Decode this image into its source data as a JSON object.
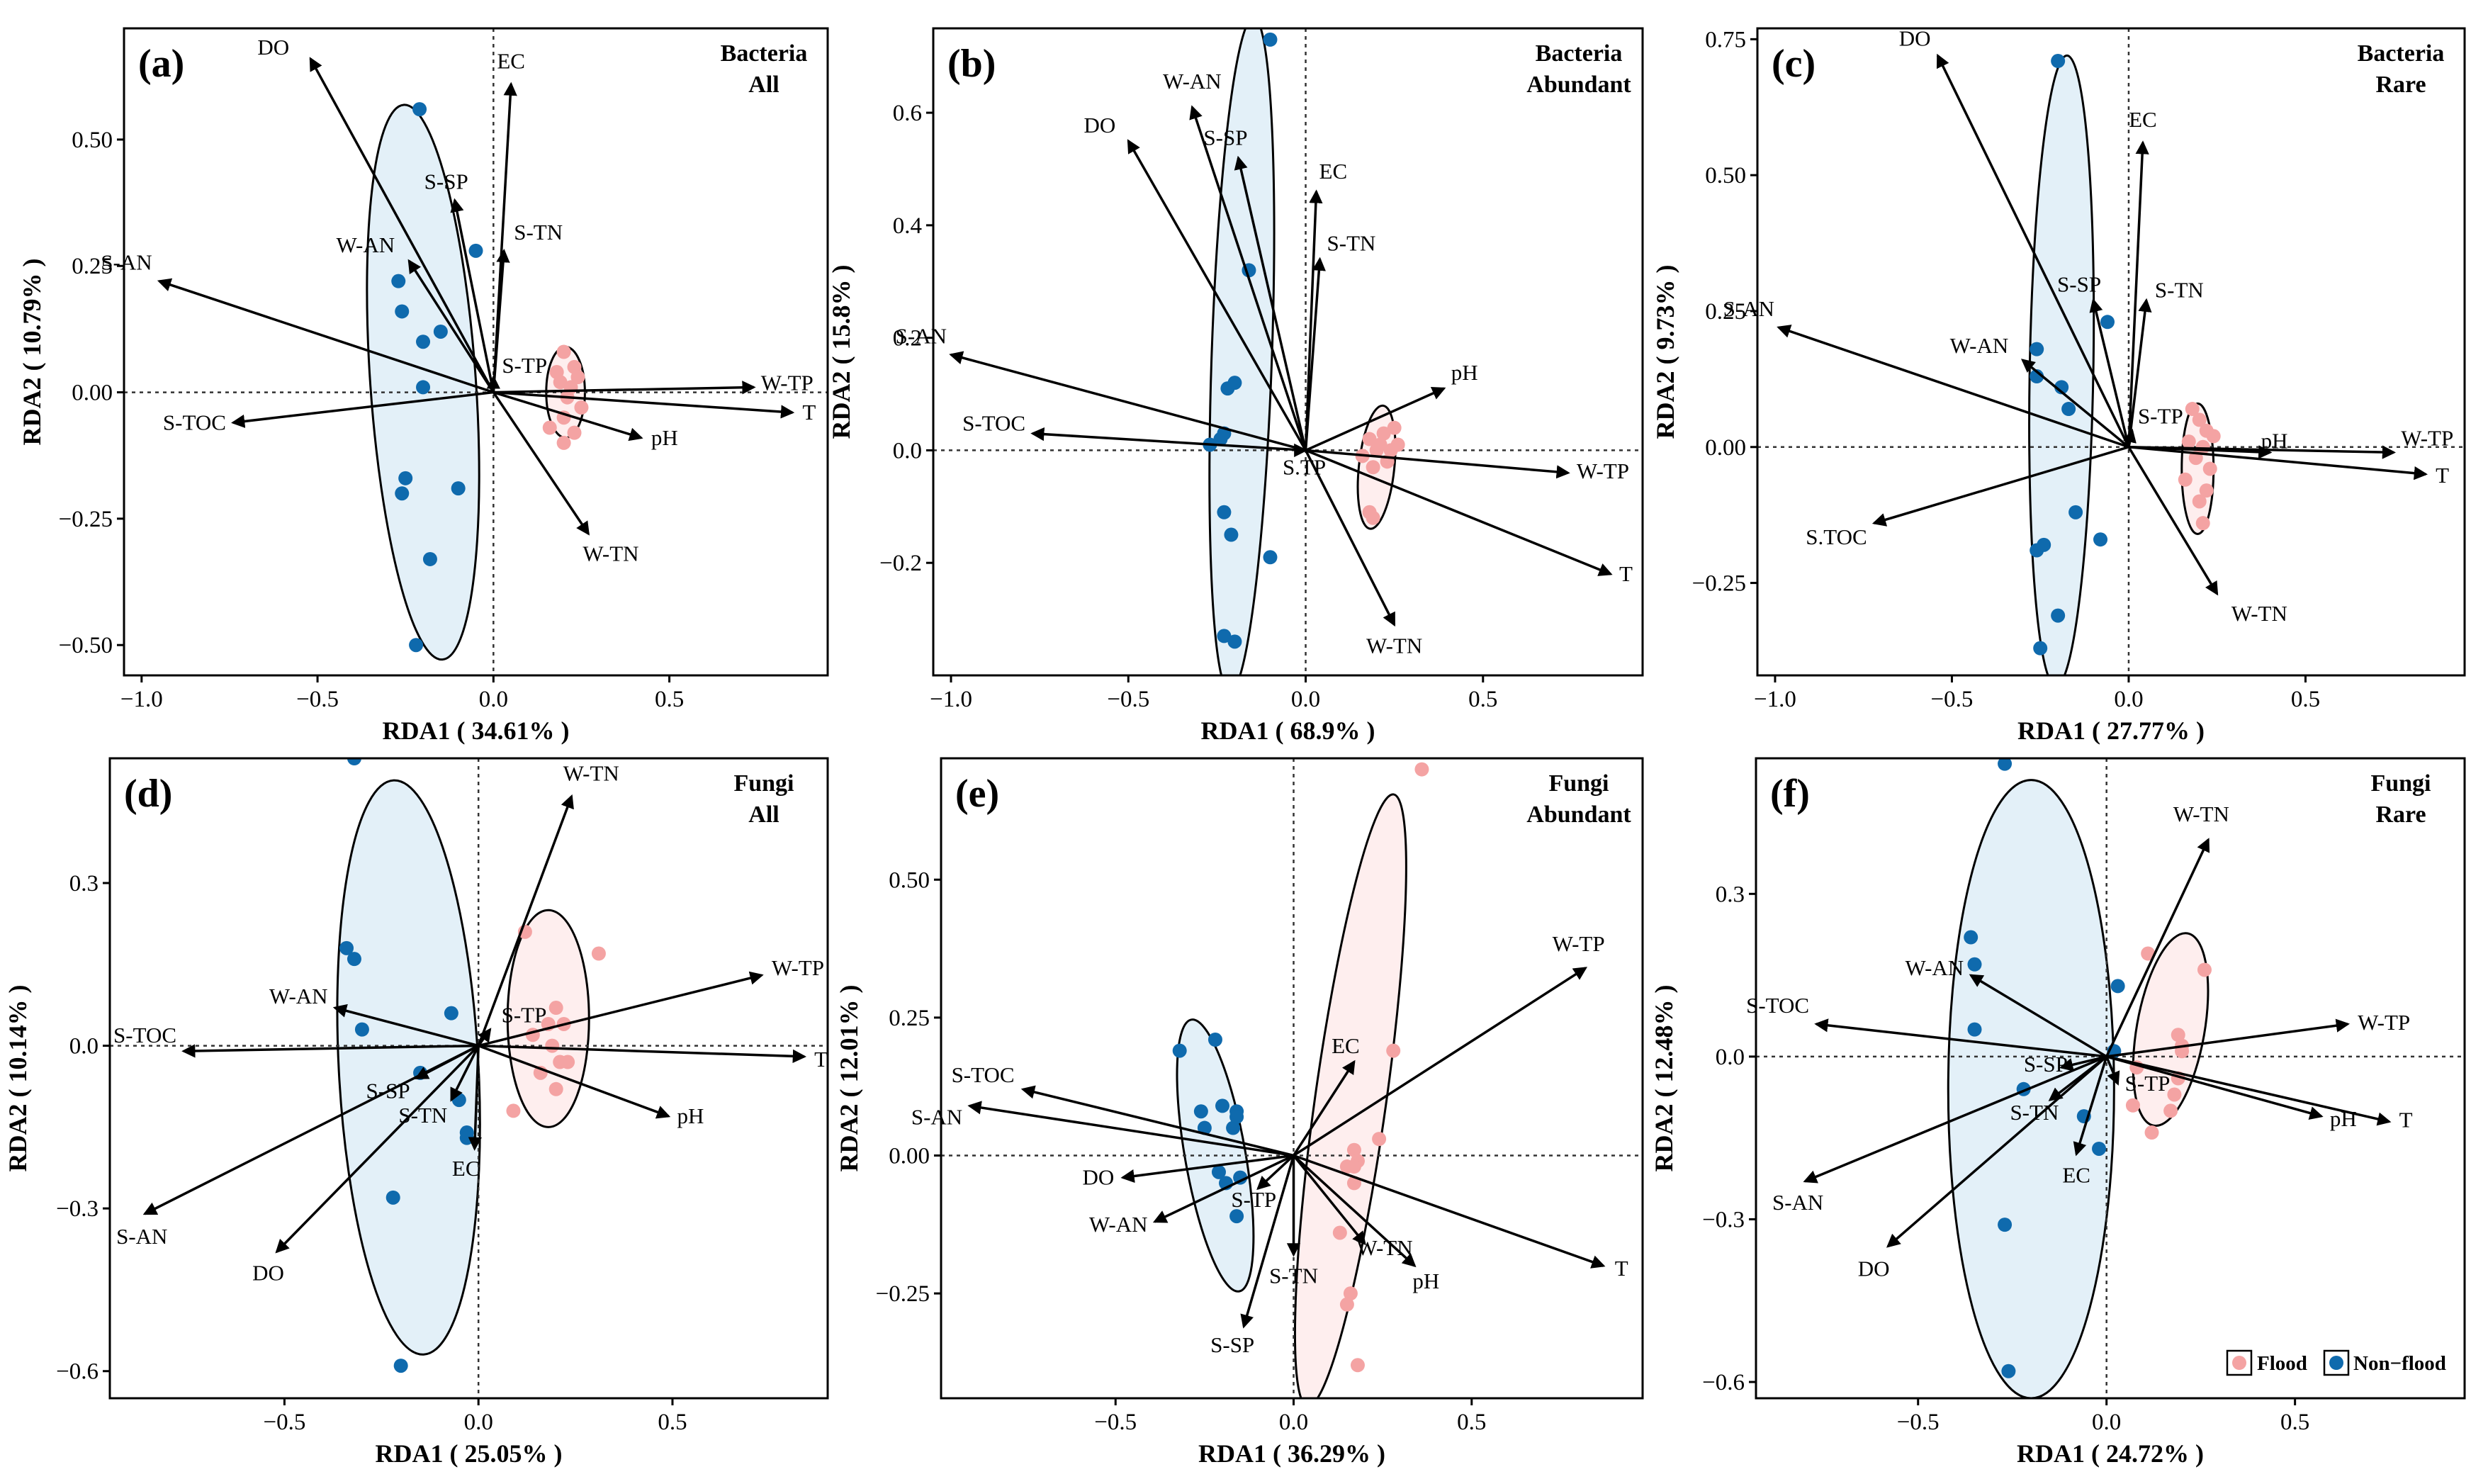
{
  "colors": {
    "flood": "#f4a3a3",
    "nonflood": "#0f6aad",
    "floodFill": "#fde8e8",
    "nonfloodFill": "#dcecf6"
  },
  "legend": {
    "flood": "Flood",
    "nonflood": "Non−flood"
  },
  "chart_data": [
    {
      "type": "scatter",
      "label": "(a)",
      "title": [
        "Bacteria",
        "All"
      ],
      "xlabel": "RDA1 ( 34.61% )",
      "ylabel": "RDA2 ( 10.79% )",
      "xlim": [
        -1.05,
        0.95
      ],
      "ylim": [
        -0.56,
        0.72
      ],
      "xticks": [
        -1.0,
        -0.5,
        0.0,
        0.5
      ],
      "xticklabels": [
        "−1.0",
        "−0.5",
        "0.0",
        "0.5"
      ],
      "yticks": [
        -0.5,
        -0.25,
        0.0,
        0.25,
        0.5
      ],
      "yticklabels": [
        "−0.50",
        "−0.25",
        "0.00",
        "0.25",
        "0.50"
      ],
      "arrows": [
        {
          "label": "DO",
          "x": -0.52,
          "y": 0.66
        },
        {
          "label": "EC",
          "x": 0.05,
          "y": 0.61
        },
        {
          "label": "S-SP",
          "x": -0.11,
          "y": 0.38
        },
        {
          "label": "S-TN",
          "x": 0.03,
          "y": 0.28
        },
        {
          "label": "W-AN",
          "x": -0.24,
          "y": 0.26
        },
        {
          "label": "S-AN",
          "x": -0.95,
          "y": 0.22
        },
        {
          "label": "S-TP",
          "x": 0.0,
          "y": 0.03
        },
        {
          "label": "W-TP",
          "x": 0.74,
          "y": 0.01
        },
        {
          "label": "T",
          "x": 0.85,
          "y": -0.04
        },
        {
          "label": "S-TOC",
          "x": -0.74,
          "y": -0.06
        },
        {
          "label": "pH",
          "x": 0.42,
          "y": -0.09
        },
        {
          "label": "W-TN",
          "x": 0.27,
          "y": -0.28
        }
      ],
      "series": [
        {
          "name": "Non−flood",
          "x": [
            -0.21,
            -0.05,
            -0.27,
            -0.26,
            -0.2,
            -0.15,
            -0.2,
            -0.25,
            -0.26,
            -0.1,
            -0.18,
            -0.22
          ],
          "y": [
            0.56,
            0.28,
            0.22,
            0.16,
            0.1,
            0.12,
            0.01,
            -0.17,
            -0.2,
            -0.19,
            -0.33,
            -0.5
          ]
        },
        {
          "name": "Flood",
          "x": [
            0.2,
            0.18,
            0.23,
            0.24,
            0.19,
            0.21,
            0.25,
            0.2,
            0.16,
            0.23,
            0.2,
            0.22
          ],
          "y": [
            0.08,
            0.04,
            0.05,
            0.03,
            0.02,
            -0.01,
            -0.03,
            -0.05,
            -0.07,
            -0.08,
            -0.1,
            0.01
          ]
        }
      ],
      "ellipses": [
        {
          "group": "Non−flood",
          "cx": -0.2,
          "cy": 0.02,
          "rx": 0.15,
          "ry": 0.55,
          "rot": -4
        },
        {
          "group": "Flood",
          "cx": 0.205,
          "cy": 0.0,
          "rx": 0.055,
          "ry": 0.09,
          "rot": 0
        }
      ]
    },
    {
      "type": "scatter",
      "label": "(b)",
      "title": [
        "Bacteria",
        "Abundant"
      ],
      "xlabel": "RDA1 ( 68.9% )",
      "ylabel": "RDA2 ( 15.8% )",
      "xlim": [
        -1.05,
        0.95
      ],
      "ylim": [
        -0.4,
        0.75
      ],
      "xticks": [
        -1.0,
        -0.5,
        0.0,
        0.5
      ],
      "xticklabels": [
        "−1.0",
        "−0.5",
        "0.0",
        "0.5"
      ],
      "yticks": [
        -0.2,
        0.0,
        0.2,
        0.4,
        0.6
      ],
      "yticklabels": [
        "−0.2",
        "0.0",
        "0.2",
        "0.4",
        "0.6"
      ],
      "arrows": [
        {
          "label": "W-AN",
          "x": -0.32,
          "y": 0.61
        },
        {
          "label": "DO",
          "x": -0.5,
          "y": 0.55
        },
        {
          "label": "S-SP",
          "x": -0.19,
          "y": 0.52
        },
        {
          "label": "EC",
          "x": 0.03,
          "y": 0.46
        },
        {
          "label": "S-TN",
          "x": 0.04,
          "y": 0.34
        },
        {
          "label": "S-AN",
          "x": -1.0,
          "y": 0.17
        },
        {
          "label": "pH",
          "x": 0.39,
          "y": 0.11
        },
        {
          "label": "S-TOC",
          "x": -0.77,
          "y": 0.03
        },
        {
          "label": "S.TP",
          "x": 0.0,
          "y": 0.0
        },
        {
          "label": "W-TP",
          "x": 0.74,
          "y": -0.04
        },
        {
          "label": "T",
          "x": 0.86,
          "y": -0.22
        },
        {
          "label": "W-TN",
          "x": 0.25,
          "y": -0.31
        }
      ],
      "series": [
        {
          "name": "Non−flood",
          "x": [
            -0.1,
            -0.16,
            -0.22,
            -0.2,
            -0.23,
            -0.24,
            -0.27,
            -0.23,
            -0.21,
            -0.1,
            -0.23,
            -0.2
          ],
          "y": [
            0.73,
            0.32,
            0.11,
            0.12,
            0.03,
            0.02,
            0.01,
            -0.11,
            -0.15,
            -0.19,
            -0.33,
            -0.34
          ]
        },
        {
          "name": "Flood",
          "x": [
            0.25,
            0.22,
            0.18,
            0.26,
            0.2,
            0.16,
            0.23,
            0.19,
            0.21,
            0.18,
            0.24,
            0.19
          ],
          "y": [
            0.04,
            0.03,
            0.02,
            0.01,
            0.0,
            -0.01,
            -0.02,
            -0.03,
            0.01,
            -0.11,
            0.0,
            -0.12
          ]
        }
      ],
      "ellipses": [
        {
          "group": "Non−flood",
          "cx": -0.18,
          "cy": 0.17,
          "rx": 0.085,
          "ry": 0.6,
          "rot": 2
        },
        {
          "group": "Flood",
          "cx": 0.2,
          "cy": -0.03,
          "rx": 0.05,
          "ry": 0.11,
          "rot": 6
        }
      ]
    },
    {
      "type": "scatter",
      "label": "(c)",
      "title": [
        "Bacteria",
        "Rare"
      ],
      "xlabel": "RDA1 ( 27.77% )",
      "ylabel": "RDA2 ( 9.73% )",
      "xlim": [
        -1.05,
        0.95
      ],
      "ylim": [
        -0.42,
        0.77
      ],
      "xticks": [
        -1.0,
        -0.5,
        0.0,
        0.5
      ],
      "xticklabels": [
        "−1.0",
        "−0.5",
        "0.0",
        "0.5"
      ],
      "yticks": [
        -0.25,
        0.0,
        0.25,
        0.5,
        0.75
      ],
      "yticklabels": [
        "−0.25",
        "0.00",
        "0.25",
        "0.50",
        "0.75"
      ],
      "arrows": [
        {
          "label": "DO",
          "x": -0.54,
          "y": 0.72
        },
        {
          "label": "EC",
          "x": 0.04,
          "y": 0.56
        },
        {
          "label": "S-SP",
          "x": -0.1,
          "y": 0.27
        },
        {
          "label": "S-TN",
          "x": 0.05,
          "y": 0.27
        },
        {
          "label": "S-AN",
          "x": -0.99,
          "y": 0.22
        },
        {
          "label": "W-AN",
          "x": -0.3,
          "y": 0.16
        },
        {
          "label": "S-TP",
          "x": 0.01,
          "y": 0.03
        },
        {
          "label": "pH",
          "x": 0.4,
          "y": -0.01
        },
        {
          "label": "W-TP",
          "x": 0.75,
          "y": -0.01
        },
        {
          "label": "T",
          "x": 0.84,
          "y": -0.05
        },
        {
          "label": "S.TOC",
          "x": -0.72,
          "y": -0.14
        },
        {
          "label": "W-TN",
          "x": 0.25,
          "y": -0.27
        }
      ],
      "series": [
        {
          "name": "Non−flood",
          "x": [
            -0.2,
            -0.06,
            -0.26,
            -0.26,
            -0.19,
            -0.17,
            -0.15,
            -0.26,
            -0.24,
            -0.08,
            -0.2,
            -0.25
          ],
          "y": [
            0.71,
            0.23,
            0.18,
            0.13,
            0.11,
            0.07,
            -0.12,
            -0.19,
            -0.18,
            -0.17,
            -0.31,
            -0.37
          ]
        },
        {
          "name": "Flood",
          "x": [
            0.18,
            0.2,
            0.22,
            0.24,
            0.17,
            0.21,
            0.19,
            0.23,
            0.16,
            0.22,
            0.2,
            0.21
          ],
          "y": [
            0.07,
            0.05,
            0.03,
            0.02,
            0.01,
            0.0,
            -0.02,
            -0.04,
            -0.06,
            -0.08,
            -0.1,
            -0.14
          ]
        }
      ],
      "ellipses": [
        {
          "group": "Non−flood",
          "cx": -0.19,
          "cy": 0.14,
          "rx": 0.09,
          "ry": 0.58,
          "rot": 1
        },
        {
          "group": "Flood",
          "cx": 0.195,
          "cy": -0.04,
          "rx": 0.045,
          "ry": 0.12,
          "rot": 0
        }
      ]
    },
    {
      "type": "scatter",
      "label": "(d)",
      "title": [
        "Fungi",
        "All"
      ],
      "xlabel": "RDA1 ( 25.05% )",
      "ylabel": "RDA2 ( 10.14% )",
      "xlim": [
        -0.95,
        0.9
      ],
      "ylim": [
        -0.65,
        0.53
      ],
      "xticks": [
        -0.5,
        0.0,
        0.5
      ],
      "xticklabels": [
        "−0.5",
        "0.0",
        "0.5"
      ],
      "yticks": [
        -0.6,
        -0.3,
        0.0,
        0.3
      ],
      "yticklabels": [
        "−0.6",
        "−0.3",
        "0.0",
        "0.3"
      ],
      "arrows": [
        {
          "label": "W-TN",
          "x": 0.24,
          "y": 0.46
        },
        {
          "label": "W-TP",
          "x": 0.73,
          "y": 0.13
        },
        {
          "label": "W-AN",
          "x": -0.37,
          "y": 0.07
        },
        {
          "label": "S-TP",
          "x": 0.03,
          "y": 0.03
        },
        {
          "label": "S-TOC",
          "x": -0.76,
          "y": -0.01
        },
        {
          "label": "T",
          "x": 0.84,
          "y": -0.02
        },
        {
          "label": "S-SP",
          "x": -0.16,
          "y": -0.06
        },
        {
          "label": "S-TN",
          "x": -0.07,
          "y": -0.1
        },
        {
          "label": "pH",
          "x": 0.49,
          "y": -0.13
        },
        {
          "label": "EC",
          "x": -0.01,
          "y": -0.19
        },
        {
          "label": "S-AN",
          "x": -0.86,
          "y": -0.31
        },
        {
          "label": "DO",
          "x": -0.52,
          "y": -0.38
        }
      ],
      "series": [
        {
          "name": "Non−flood",
          "x": [
            -0.32,
            -0.34,
            -0.32,
            -0.3,
            -0.07,
            -0.15,
            -0.05,
            -0.03,
            -0.03,
            -0.22,
            -0.2
          ],
          "y": [
            0.53,
            0.18,
            0.16,
            0.03,
            0.06,
            -0.05,
            -0.1,
            -0.16,
            -0.17,
            -0.28,
            -0.59
          ]
        },
        {
          "name": "Flood",
          "x": [
            0.12,
            0.31,
            0.2,
            0.18,
            0.22,
            0.14,
            0.19,
            0.21,
            0.16,
            0.23,
            0.2,
            0.09
          ],
          "y": [
            0.21,
            0.17,
            0.07,
            0.04,
            0.04,
            0.02,
            0.0,
            -0.03,
            -0.05,
            -0.03,
            -0.08,
            -0.12
          ]
        }
      ],
      "ellipses": [
        {
          "group": "Non−flood",
          "cx": -0.18,
          "cy": -0.04,
          "rx": 0.18,
          "ry": 0.53,
          "rot": -3
        },
        {
          "group": "Flood",
          "cx": 0.18,
          "cy": 0.05,
          "rx": 0.105,
          "ry": 0.2,
          "rot": 0
        }
      ]
    },
    {
      "type": "scatter",
      "label": "(e)",
      "title": [
        "Fungi",
        "Abundant"
      ],
      "xlabel": "RDA1 ( 36.29% )",
      "ylabel": "RDA2 ( 12.01% )",
      "xlim": [
        -0.99,
        0.98
      ],
      "ylim": [
        -0.44,
        0.72
      ],
      "xticks": [
        -0.5,
        0.0,
        0.5
      ],
      "xticklabels": [
        "−0.5",
        "0.0",
        "0.5"
      ],
      "yticks": [
        -0.25,
        0.0,
        0.25,
        0.5
      ],
      "yticklabels": [
        "−0.25",
        "0.00",
        "0.25",
        "0.50"
      ],
      "arrows": [
        {
          "label": "W-TP",
          "x": 0.82,
          "y": 0.34
        },
        {
          "label": "EC",
          "x": 0.17,
          "y": 0.17
        },
        {
          "label": "S-TOC",
          "x": -0.76,
          "y": 0.12
        },
        {
          "label": "S-AN",
          "x": -0.91,
          "y": 0.09
        },
        {
          "label": "DO",
          "x": -0.48,
          "y": -0.04
        },
        {
          "label": "S-TP",
          "x": -0.1,
          "y": -0.06
        },
        {
          "label": "W-AN",
          "x": -0.39,
          "y": -0.12
        },
        {
          "label": "W-TN",
          "x": 0.2,
          "y": -0.16
        },
        {
          "label": "S-TN",
          "x": 0.0,
          "y": -0.18
        },
        {
          "label": "pH",
          "x": 0.34,
          "y": -0.2
        },
        {
          "label": "T",
          "x": 0.87,
          "y": -0.2
        },
        {
          "label": "S-SP",
          "x": -0.14,
          "y": -0.31
        }
      ],
      "series": [
        {
          "name": "Non−flood",
          "x": [
            -0.32,
            -0.22,
            -0.26,
            -0.2,
            -0.16,
            -0.17,
            -0.16,
            -0.25,
            -0.21,
            -0.15,
            -0.19,
            -0.16
          ],
          "y": [
            0.19,
            0.21,
            0.08,
            0.09,
            0.08,
            0.05,
            0.07,
            0.05,
            -0.03,
            -0.04,
            -0.05,
            -0.11
          ]
        },
        {
          "name": "Flood",
          "x": [
            0.36,
            0.28,
            0.24,
            0.17,
            0.18,
            0.15,
            0.17,
            0.13,
            0.16,
            0.15,
            0.18,
            0.17
          ],
          "y": [
            0.7,
            0.19,
            0.03,
            0.01,
            -0.01,
            -0.02,
            -0.05,
            -0.14,
            -0.25,
            -0.27,
            -0.38,
            -0.02
          ]
        }
      ],
      "ellipses": [
        {
          "group": "Non−flood",
          "cx": -0.22,
          "cy": 0.0,
          "rx": 0.085,
          "ry": 0.25,
          "rot": -10
        },
        {
          "group": "Flood",
          "cx": 0.16,
          "cy": 0.1,
          "rx": 0.1,
          "ry": 0.56,
          "rot": 8
        }
      ]
    },
    {
      "type": "scatter",
      "label": "(f)",
      "title": [
        "Fungi",
        "Rare"
      ],
      "xlabel": "RDA1 ( 24.72% )",
      "ylabel": "RDA2 ( 12.48% )",
      "xlim": [
        -0.93,
        0.95
      ],
      "ylim": [
        -0.63,
        0.55
      ],
      "xticks": [
        -0.5,
        0.0,
        0.5
      ],
      "xticklabels": [
        "−0.5",
        "0.0",
        "0.5"
      ],
      "yticks": [
        -0.6,
        -0.3,
        0.0,
        0.3
      ],
      "yticklabels": [
        "−0.6",
        "−0.3",
        "0.0",
        "0.3"
      ],
      "arrows": [
        {
          "label": "W-TN",
          "x": 0.27,
          "y": 0.4
        },
        {
          "label": "W-AN",
          "x": -0.36,
          "y": 0.15
        },
        {
          "label": "S-TOC",
          "x": -0.77,
          "y": 0.06
        },
        {
          "label": "W-TP",
          "x": 0.64,
          "y": 0.06
        },
        {
          "label": "S-SP",
          "x": -0.12,
          "y": -0.02
        },
        {
          "label": "S-TP",
          "x": 0.03,
          "y": -0.05
        },
        {
          "label": "S-TN",
          "x": -0.15,
          "y": -0.08
        },
        {
          "label": "pH",
          "x": 0.57,
          "y": -0.11
        },
        {
          "label": "T",
          "x": 0.75,
          "y": -0.12
        },
        {
          "label": "EC",
          "x": -0.08,
          "y": -0.18
        },
        {
          "label": "S-AN",
          "x": -0.8,
          "y": -0.23
        },
        {
          "label": "DO",
          "x": -0.58,
          "y": -0.35
        }
      ],
      "series": [
        {
          "name": "Non−flood",
          "x": [
            -0.27,
            -0.36,
            -0.35,
            -0.35,
            -0.22,
            -0.06,
            -0.02,
            0.03,
            0.02,
            -0.27,
            -0.26
          ],
          "y": [
            0.54,
            0.22,
            0.17,
            0.05,
            -0.06,
            -0.11,
            -0.17,
            0.13,
            0.01,
            -0.31,
            -0.58
          ]
        },
        {
          "name": "Flood",
          "x": [
            0.11,
            0.26,
            0.19,
            0.2,
            0.2,
            0.08,
            0.19,
            0.18,
            0.07,
            0.17,
            0.12
          ],
          "y": [
            0.19,
            0.16,
            0.04,
            0.02,
            0.01,
            -0.02,
            -0.04,
            -0.07,
            -0.09,
            -0.1,
            -0.14
          ]
        }
      ],
      "ellipses": [
        {
          "group": "Non−flood",
          "cx": -0.2,
          "cy": -0.06,
          "rx": 0.22,
          "ry": 0.57,
          "rot": 0
        },
        {
          "group": "Flood",
          "cx": 0.17,
          "cy": 0.05,
          "rx": 0.09,
          "ry": 0.18,
          "rot": 10
        }
      ]
    }
  ]
}
